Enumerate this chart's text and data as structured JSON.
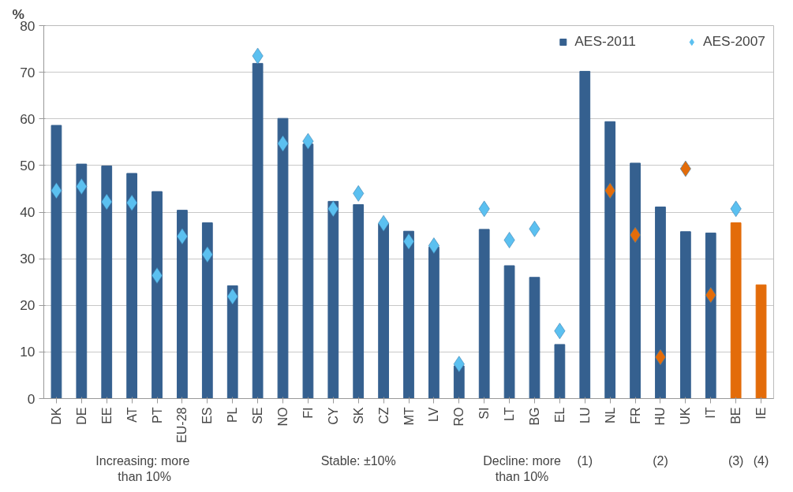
{
  "chart_data": {
    "type": "bar",
    "ylabel": "%",
    "ylim": [
      0,
      80
    ],
    "yticks": [
      0,
      10,
      20,
      30,
      40,
      50,
      60,
      70,
      80
    ],
    "grid": "y",
    "legend": "top right",
    "marker": "diamond",
    "categories": [
      "DK",
      "DE",
      "EE",
      "AT",
      "PT",
      "EU-28",
      "ES",
      "PL",
      "SE",
      "NO",
      "FI",
      "CY",
      "SK",
      "CZ",
      "MT",
      "LV",
      "RO",
      "SI",
      "LT",
      "BG",
      "EL",
      "LU",
      "NL",
      "FR",
      "HU",
      "UK",
      "IT",
      "BE",
      "IE"
    ],
    "series": [
      {
        "name": "AES-2011",
        "type": "bar",
        "color": "#35608f",
        "values": [
          58.6,
          50.3,
          49.9,
          48.3,
          44.4,
          40.4,
          37.7,
          24.2,
          71.9,
          60.1,
          54.6,
          42.3,
          41.6,
          37.5,
          35.9,
          32.5,
          7.0,
          36.3,
          28.5,
          26.0,
          11.6,
          70.2,
          59.4,
          50.5,
          41.1,
          35.8,
          35.5,
          37.7,
          24.4
        ],
        "colors": [
          "#35608f",
          "#35608f",
          "#35608f",
          "#35608f",
          "#35608f",
          "#35608f",
          "#35608f",
          "#35608f",
          "#35608f",
          "#35608f",
          "#35608f",
          "#35608f",
          "#35608f",
          "#35608f",
          "#35608f",
          "#35608f",
          "#35608f",
          "#35608f",
          "#35608f",
          "#35608f",
          "#35608f",
          "#35608f",
          "#35608f",
          "#35608f",
          "#35608f",
          "#35608f",
          "#35608f",
          "#e36c0a",
          "#e36c0a"
        ]
      },
      {
        "name": "AES-2007",
        "type": "scatter",
        "color": "#5bc0f0",
        "values": [
          44.6,
          45.5,
          42.2,
          42.0,
          26.4,
          34.8,
          30.9,
          21.9,
          73.5,
          54.7,
          55.2,
          40.7,
          44.0,
          37.6,
          33.7,
          32.8,
          7.4,
          40.7,
          34.0,
          36.4,
          14.5,
          null,
          44.6,
          35.1,
          8.9,
          49.3,
          22.2,
          40.7,
          null
        ],
        "colors": [
          "#5bc0f0",
          "#5bc0f0",
          "#5bc0f0",
          "#5bc0f0",
          "#5bc0f0",
          "#5bc0f0",
          "#5bc0f0",
          "#5bc0f0",
          "#5bc0f0",
          "#5bc0f0",
          "#5bc0f0",
          "#5bc0f0",
          "#5bc0f0",
          "#5bc0f0",
          "#5bc0f0",
          "#5bc0f0",
          "#5bc0f0",
          "#5bc0f0",
          "#5bc0f0",
          "#5bc0f0",
          "#5bc0f0",
          "#5bc0f0",
          "#e36c0a",
          "#e36c0a",
          "#e36c0a",
          "#e36c0a",
          "#e36c0a",
          "#5bc0f0",
          "#5bc0f0"
        ]
      }
    ],
    "annotations": [
      "Increasing:  more\nthan 10%",
      "Stable: ±10%",
      "Decline: more\nthan 10%",
      "(1)",
      "(2)",
      "(3)",
      "(4)"
    ]
  }
}
